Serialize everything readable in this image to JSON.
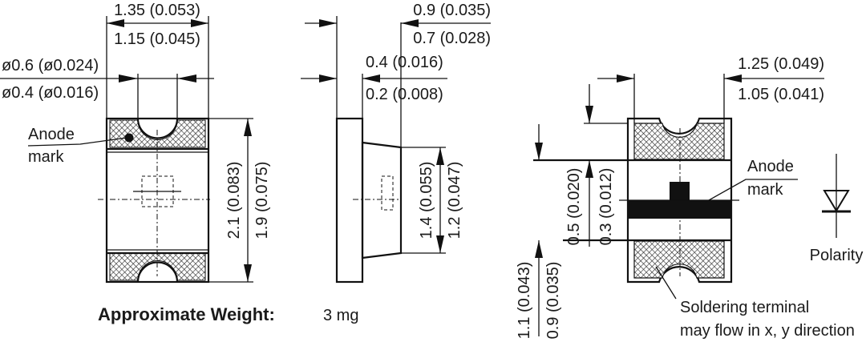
{
  "top_view": {
    "width_max": "1.35 (0.053)",
    "width_min": "1.15 (0.045)",
    "notch_max": "ø0.6 (ø0.024)",
    "notch_min": "ø0.4 (ø0.016)",
    "anode_label_1": "Anode",
    "anode_label_2": "mark",
    "length_max": "2.1 (0.083)",
    "length_min": "1.9 (0.075)"
  },
  "side_view": {
    "height_max": "0.9 (0.035)",
    "height_min": "0.7 (0.028)",
    "plate_max": "0.4 (0.016)",
    "plate_min": "0.2 (0.008)",
    "lens_max": "1.4 (0.055)",
    "lens_min": "1.2 (0.047)"
  },
  "bottom_view": {
    "pad_width_max": "1.25 (0.049)",
    "pad_width_min": "1.05 (0.041)",
    "pad_gap_max": "0.5 (0.020)",
    "pad_gap_min": "0.3 (0.012)",
    "pad_len_max": "1.1 (0.043)",
    "pad_len_min": "0.9 (0.035)",
    "anode_label_1": "Anode",
    "anode_label_2": "mark",
    "polarity_label": "Polarity",
    "solder_note_1": "Soldering terminal",
    "solder_note_2": "may flow in x, y direction"
  },
  "weight": {
    "label": "Approximate Weight:",
    "value": "3 mg"
  },
  "colors": {
    "ink": "#111111",
    "background": "#ffffff"
  }
}
